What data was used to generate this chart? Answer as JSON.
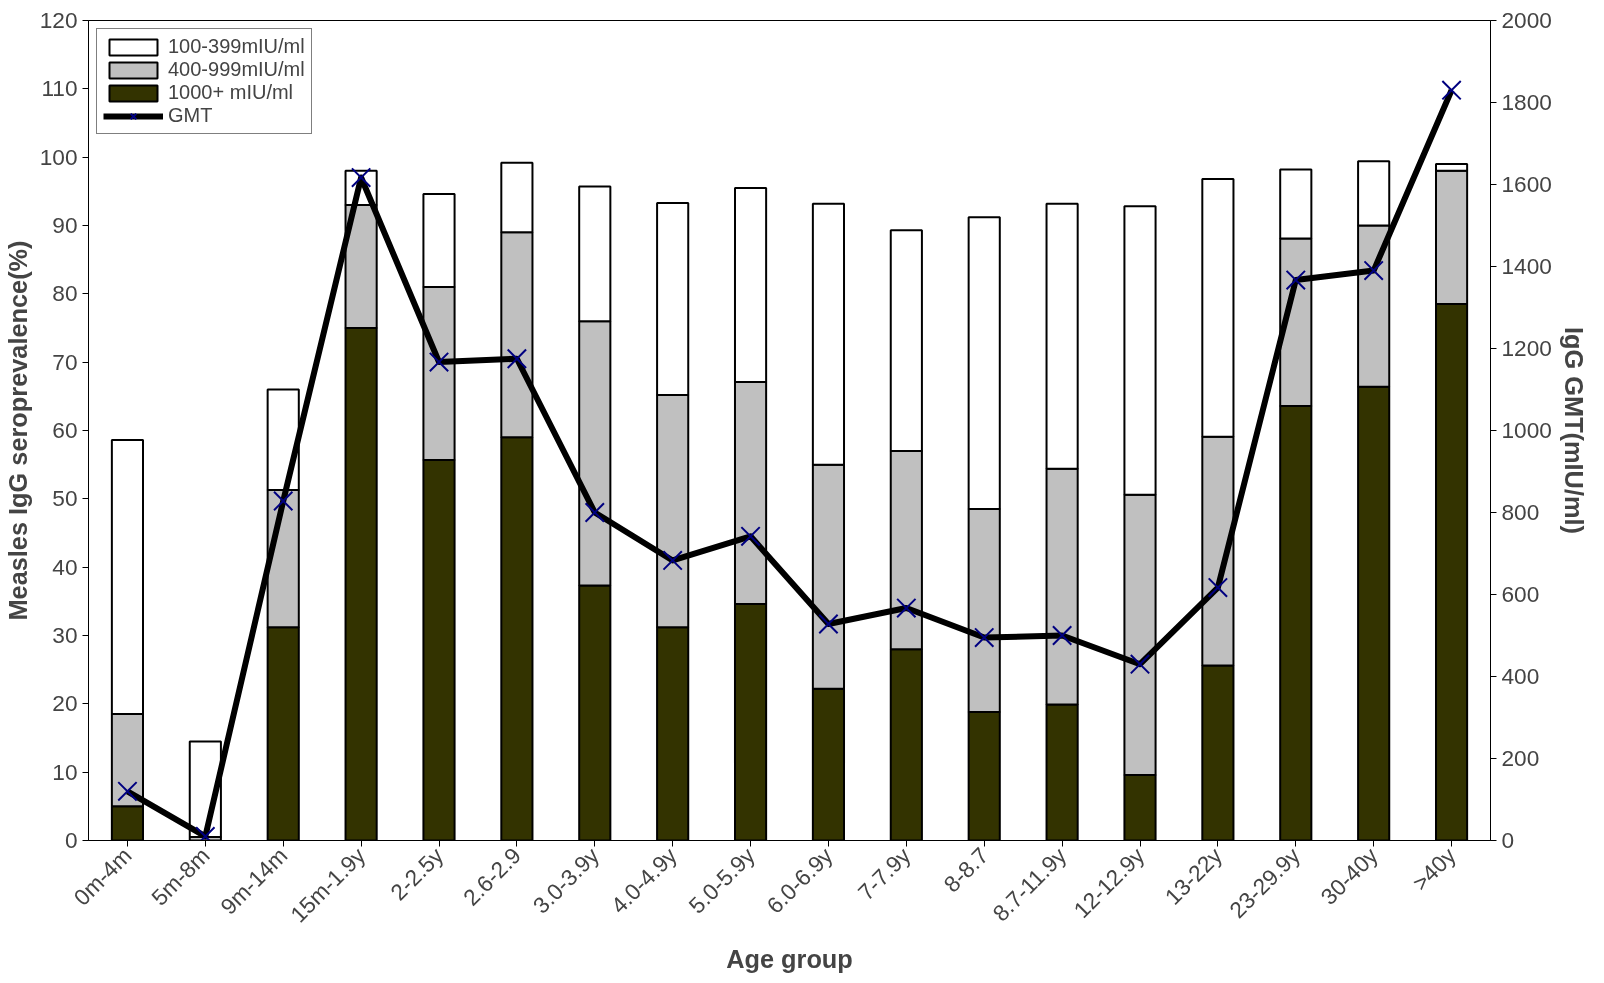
{
  "chart_data": {
    "type": "bar",
    "stacked": true,
    "xlabel": "Age group",
    "ylabel": "Measles IgG seroprevalence(%)",
    "y2label": "IgG GMT(mIU/ml)",
    "categories": [
      "0m-4m",
      "5m-8m",
      "9m-14m",
      "15m-1.9y",
      "2-2.5y",
      "2.6-2.9",
      "3.0-3.9y",
      "4.0-4.9y",
      "5.0-5.9y",
      "6.0-6.9y",
      "7-7.9y",
      "8-8.7",
      "8.7-11.9y",
      "12-12.9y",
      "13-22y",
      "23-29.9y",
      "30-40y",
      ">40y"
    ],
    "series": [
      {
        "name": "1000+ mIU/ml",
        "color": "#333300",
        "values": [
          5,
          0,
          31.2,
          75,
          55.7,
          59,
          37.3,
          31.2,
          34.6,
          22.2,
          28,
          18.8,
          19.9,
          9.6,
          25.6,
          63.6,
          66.4,
          78.5
        ]
      },
      {
        "name": "400-999mIU/ml",
        "color": "#c0c0c0",
        "values": [
          13.5,
          0.5,
          20.1,
          18,
          25.3,
          30,
          38.7,
          34,
          32.5,
          32.8,
          29,
          29.7,
          34.5,
          41,
          33.5,
          24.5,
          23.6,
          19.5
        ]
      },
      {
        "name": "100-399mIU/ml",
        "color": "#ffffff",
        "values": [
          40.1,
          14,
          14.7,
          5,
          13.6,
          10.2,
          19.7,
          28.1,
          28.4,
          38.2,
          32.3,
          42.7,
          38.8,
          42.2,
          37.7,
          10.1,
          9.4,
          1
        ]
      },
      {
        "name": "GMT",
        "type": "line",
        "axis": "y2",
        "color": "#000000",
        "marker": "cross",
        "values": [
          120,
          10,
          828,
          1617,
          1167,
          1175,
          800,
          683,
          742,
          528,
          567,
          495,
          500,
          430,
          617,
          1367,
          1390,
          1830
        ]
      }
    ],
    "ylim": [
      0,
      120
    ],
    "yticks": [
      0,
      10,
      20,
      30,
      40,
      50,
      60,
      70,
      80,
      90,
      100,
      110,
      120
    ],
    "y2lim": [
      0,
      2000
    ],
    "y2ticks": [
      0,
      200,
      400,
      600,
      800,
      1000,
      1200,
      1400,
      1600,
      1800,
      2000
    ],
    "grid": false,
    "legend": "top left"
  }
}
